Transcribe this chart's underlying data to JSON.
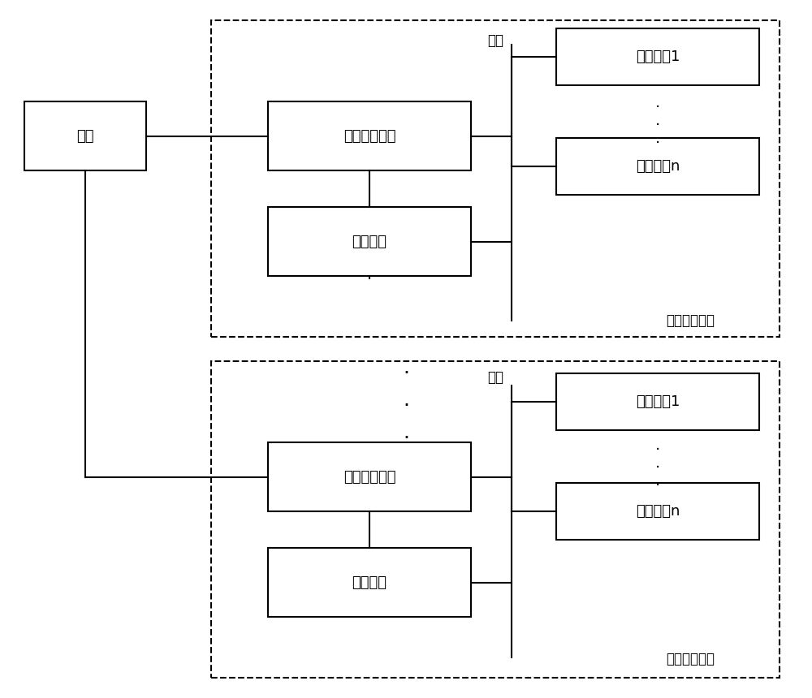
{
  "bg_color": "#ffffff",
  "line_color": "#000000",
  "box_color": "#ffffff",
  "dashed_color": "#000000",
  "font_size_main": 13,
  "font_size_label": 12,
  "font_family": "SimHei",
  "labels": {
    "mains": "市电",
    "supply_module1": "供电转换模块",
    "storage_module1": "储能模块",
    "user_device1_1": "用户设切1",
    "user_device1_n": "用户设备n",
    "load_supply1": "负载供电装置",
    "busbar1": "母线",
    "supply_module2": "供电转换模块",
    "storage_module2": "储能模块",
    "user_device2_1": "用户设切1",
    "user_device2_n": "用户设备n",
    "load_supply2": "负载供电装置",
    "busbar2": "母线"
  }
}
